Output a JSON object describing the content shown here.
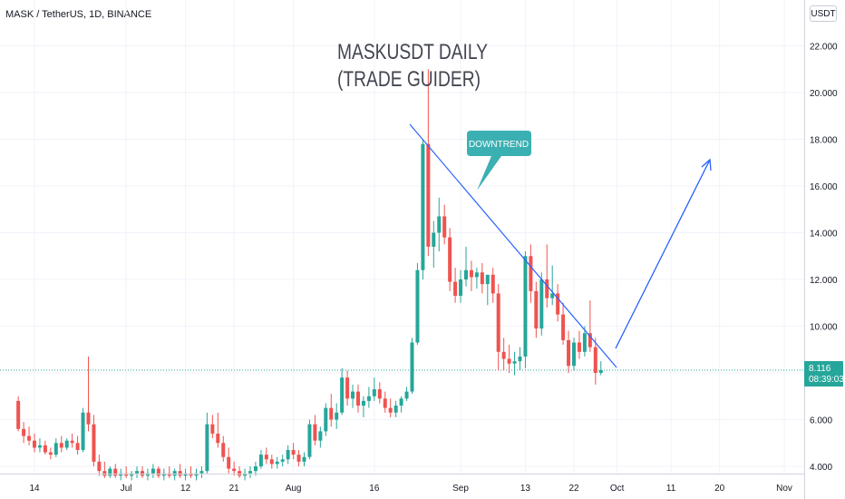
{
  "header": {
    "symbol_line": "MASK / TetherUS, 1D, BINANCE"
  },
  "currency_button": "USDT",
  "annotations": {
    "title_line1": "MASKUSDT DAILY",
    "title_line2": "(TRADE GUIDER)",
    "callout": "DOWNTREND"
  },
  "price_label": {
    "value": "8.116",
    "countdown": "08:39:03"
  },
  "colors": {
    "up": "#26a69a",
    "down": "#ef5350",
    "trendline": "#2962ff",
    "callout_bg": "#3bb0b3",
    "price_line": "#26a69a"
  },
  "chart_data": {
    "type": "candlestick",
    "title": "MASKUSDT DAILY (TRADE GUIDER)",
    "ylabel": "",
    "xlabel": "",
    "ylim": [
      3.5,
      23.0
    ],
    "yticks": [
      "4.000",
      "6.000",
      "8.000",
      "10.000",
      "12.000",
      "14.000",
      "16.000",
      "18.000",
      "20.000",
      "22.000"
    ],
    "ytick_values": [
      4,
      6,
      8,
      10,
      12,
      14,
      16,
      18,
      20,
      22
    ],
    "xticks": [
      {
        "label": "14",
        "day": 14
      },
      {
        "label": "Jul",
        "day": 31
      },
      {
        "label": "12",
        "day": 42
      },
      {
        "label": "21",
        "day": 51
      },
      {
        "label": "Aug",
        "day": 62
      },
      {
        "label": "16",
        "day": 77
      },
      {
        "label": "Sep",
        "day": 93
      },
      {
        "label": "13",
        "day": 105
      },
      {
        "label": "22",
        "day": 114
      },
      {
        "label": "Oct",
        "day": 122
      },
      {
        "label": "11",
        "day": 132
      },
      {
        "label": "20",
        "day": 141
      },
      {
        "label": "Nov",
        "day": 153
      }
    ],
    "last_price": 8.116,
    "ohlc": [
      [
        6.8,
        7.0,
        5.5,
        5.6
      ],
      [
        5.6,
        5.9,
        5.0,
        5.3
      ],
      [
        5.3,
        5.7,
        4.9,
        5.1
      ],
      [
        5.1,
        5.4,
        4.6,
        4.8
      ],
      [
        4.8,
        5.2,
        4.6,
        4.9
      ],
      [
        4.9,
        5.1,
        4.5,
        4.6
      ],
      [
        4.6,
        4.8,
        4.3,
        4.5
      ],
      [
        4.5,
        5.2,
        4.4,
        5.0
      ],
      [
        5.0,
        5.3,
        4.6,
        4.8
      ],
      [
        4.8,
        5.2,
        4.7,
        5.1
      ],
      [
        5.1,
        5.4,
        4.8,
        5.0
      ],
      [
        5.0,
        5.3,
        4.5,
        4.7
      ],
      [
        4.7,
        6.5,
        4.6,
        6.3
      ],
      [
        6.3,
        8.7,
        5.5,
        5.8
      ],
      [
        5.8,
        6.2,
        4.0,
        4.2
      ],
      [
        4.2,
        4.5,
        3.6,
        3.8
      ],
      [
        3.8,
        4.2,
        3.5,
        3.6
      ],
      [
        3.6,
        4.0,
        3.5,
        3.9
      ],
      [
        3.9,
        4.1,
        3.5,
        3.6
      ],
      [
        3.6,
        3.9,
        3.4,
        3.7
      ],
      [
        3.7,
        4.0,
        3.5,
        3.6
      ],
      [
        3.6,
        3.8,
        3.4,
        3.7
      ],
      [
        3.7,
        4.0,
        3.5,
        3.8
      ],
      [
        3.8,
        4.0,
        3.5,
        3.6
      ],
      [
        3.6,
        3.9,
        3.4,
        3.7
      ],
      [
        3.7,
        4.1,
        3.5,
        3.9
      ],
      [
        3.9,
        4.0,
        3.5,
        3.6
      ],
      [
        3.6,
        3.9,
        3.4,
        3.7
      ],
      [
        3.7,
        4.0,
        3.5,
        3.6
      ],
      [
        3.6,
        3.9,
        3.4,
        3.8
      ],
      [
        3.8,
        4.1,
        3.5,
        3.6
      ],
      [
        3.6,
        3.9,
        3.4,
        3.7
      ],
      [
        3.7,
        4.0,
        3.5,
        3.6
      ],
      [
        3.6,
        3.9,
        3.4,
        3.7
      ],
      [
        3.7,
        4.0,
        3.5,
        3.8
      ],
      [
        3.8,
        6.3,
        3.7,
        5.8
      ],
      [
        5.8,
        6.2,
        5.2,
        5.4
      ],
      [
        5.4,
        6.3,
        4.8,
        5.0
      ],
      [
        5.0,
        5.3,
        4.2,
        4.4
      ],
      [
        4.4,
        4.8,
        3.7,
        3.9
      ],
      [
        3.9,
        4.2,
        3.6,
        3.8
      ],
      [
        3.8,
        4.0,
        3.5,
        3.6
      ],
      [
        3.6,
        3.9,
        3.4,
        3.7
      ],
      [
        3.7,
        4.0,
        3.5,
        3.8
      ],
      [
        3.8,
        4.2,
        3.6,
        4.0
      ],
      [
        4.0,
        4.7,
        3.9,
        4.5
      ],
      [
        4.5,
        4.8,
        4.1,
        4.3
      ],
      [
        4.3,
        4.5,
        3.9,
        4.1
      ],
      [
        4.1,
        4.4,
        3.9,
        4.2
      ],
      [
        4.2,
        4.5,
        4.0,
        4.3
      ],
      [
        4.3,
        4.9,
        4.1,
        4.7
      ],
      [
        4.7,
        5.0,
        4.3,
        4.5
      ],
      [
        4.5,
        4.7,
        4.0,
        4.2
      ],
      [
        4.2,
        4.6,
        4.0,
        4.4
      ],
      [
        4.4,
        6.0,
        4.3,
        5.8
      ],
      [
        5.8,
        6.2,
        4.9,
        5.1
      ],
      [
        5.1,
        5.7,
        4.8,
        5.5
      ],
      [
        5.5,
        6.7,
        5.3,
        6.5
      ],
      [
        6.5,
        7.1,
        5.7,
        6.0
      ],
      [
        6.0,
        6.7,
        5.6,
        6.3
      ],
      [
        6.3,
        8.2,
        6.2,
        7.8
      ],
      [
        7.8,
        8.1,
        6.6,
        6.9
      ],
      [
        6.9,
        7.5,
        6.5,
        7.2
      ],
      [
        7.2,
        7.5,
        6.3,
        6.6
      ],
      [
        6.6,
        7.0,
        6.1,
        6.8
      ],
      [
        6.8,
        7.4,
        6.5,
        7.0
      ],
      [
        7.0,
        7.8,
        6.8,
        7.3
      ],
      [
        7.3,
        7.6,
        6.7,
        6.9
      ],
      [
        6.9,
        7.2,
        6.3,
        6.5
      ],
      [
        6.5,
        6.9,
        6.1,
        6.3
      ],
      [
        6.3,
        6.8,
        6.1,
        6.6
      ],
      [
        6.6,
        7.0,
        6.3,
        6.9
      ],
      [
        6.9,
        7.4,
        6.8,
        7.2
      ],
      [
        7.2,
        9.5,
        7.1,
        9.3
      ],
      [
        9.3,
        12.7,
        9.2,
        12.4
      ],
      [
        12.4,
        18.0,
        12.0,
        17.8
      ],
      [
        17.8,
        21.0,
        13.0,
        13.4
      ],
      [
        13.4,
        14.5,
        12.5,
        14.0
      ],
      [
        14.0,
        15.5,
        13.2,
        14.7
      ],
      [
        14.7,
        15.2,
        13.5,
        13.8
      ],
      [
        13.8,
        14.2,
        11.5,
        11.9
      ],
      [
        11.9,
        12.5,
        11.0,
        11.3
      ],
      [
        11.3,
        12.4,
        11.0,
        12.0
      ],
      [
        12.0,
        13.4,
        11.7,
        12.4
      ],
      [
        12.4,
        12.8,
        11.5,
        12.1
      ],
      [
        12.1,
        12.5,
        11.6,
        12.3
      ],
      [
        12.3,
        12.7,
        11.4,
        11.8
      ],
      [
        11.8,
        12.2,
        10.9,
        12.2
      ],
      [
        12.2,
        12.5,
        11.0,
        11.4
      ],
      [
        11.4,
        11.8,
        8.1,
        8.9
      ],
      [
        8.9,
        9.5,
        8.1,
        8.6
      ],
      [
        8.6,
        9.2,
        8.0,
        8.4
      ],
      [
        8.4,
        8.9,
        7.9,
        8.5
      ],
      [
        8.5,
        9.1,
        8.1,
        8.7
      ],
      [
        8.7,
        13.2,
        8.2,
        13.0
      ],
      [
        13.0,
        13.5,
        11.0,
        11.5
      ],
      [
        11.5,
        11.9,
        9.5,
        9.9
      ],
      [
        9.9,
        12.3,
        9.6,
        12.0
      ],
      [
        12.0,
        13.5,
        10.8,
        11.2
      ],
      [
        11.2,
        12.6,
        10.9,
        11.4
      ],
      [
        11.4,
        11.8,
        10.2,
        10.5
      ],
      [
        10.5,
        11.0,
        9.2,
        9.4
      ],
      [
        9.4,
        9.8,
        8.0,
        8.3
      ],
      [
        8.3,
        9.5,
        8.1,
        9.3
      ],
      [
        9.3,
        9.8,
        8.6,
        8.9
      ],
      [
        8.9,
        10.0,
        8.7,
        9.7
      ],
      [
        9.7,
        11.1,
        8.9,
        9.1
      ],
      [
        9.1,
        9.5,
        7.5,
        8.0
      ],
      [
        8.0,
        8.5,
        7.9,
        8.116
      ]
    ],
    "first_day": 11
  }
}
